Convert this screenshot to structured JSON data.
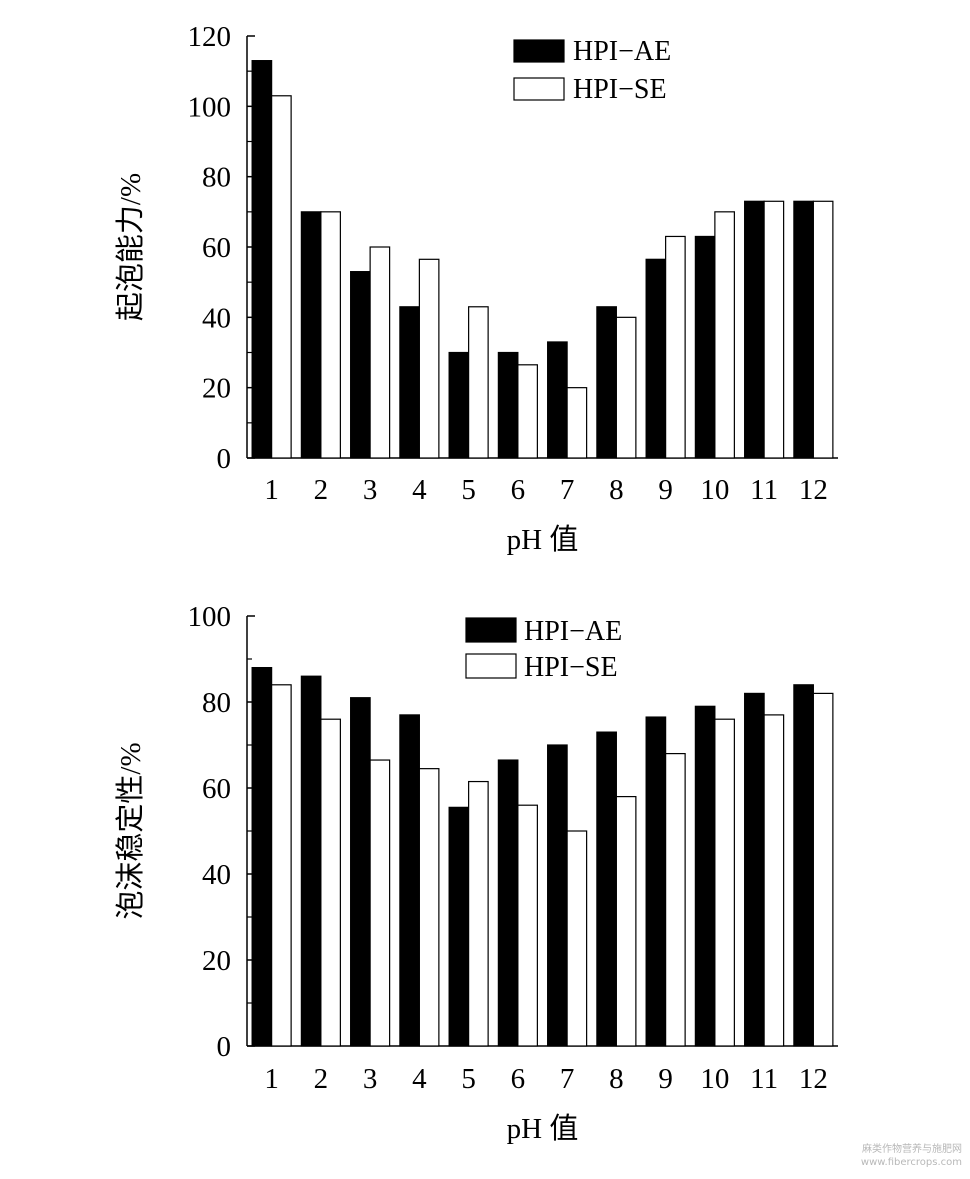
{
  "chart_data": [
    {
      "type": "bar",
      "xlabel": "pH 值",
      "ylabel": "起泡能力/%",
      "ylim": [
        0,
        120
      ],
      "yticks": [
        0,
        20,
        40,
        60,
        80,
        100,
        120
      ],
      "categories": [
        "1",
        "2",
        "3",
        "4",
        "5",
        "6",
        "7",
        "8",
        "9",
        "10",
        "11",
        "12"
      ],
      "series": [
        {
          "name": "HPI−AE",
          "color": "#000000",
          "values": [
            113,
            70,
            53,
            43,
            30,
            30,
            33,
            43,
            56.5,
            63,
            73,
            73
          ]
        },
        {
          "name": "HPI−SE",
          "color": "#ffffff",
          "values": [
            103,
            70,
            60,
            56.5,
            43,
            26.5,
            20,
            40,
            63,
            70,
            73,
            73
          ]
        }
      ],
      "legend": "top-right"
    },
    {
      "type": "bar",
      "xlabel": "pH 值",
      "ylabel": "泡沫稳定性/%",
      "ylim": [
        0,
        100
      ],
      "yticks": [
        0,
        20,
        40,
        60,
        80,
        100
      ],
      "categories": [
        "1",
        "2",
        "3",
        "4",
        "5",
        "6",
        "7",
        "8",
        "9",
        "10",
        "11",
        "12"
      ],
      "series": [
        {
          "name": "HPI−AE",
          "color": "#000000",
          "values": [
            88,
            86,
            81,
            77,
            55.5,
            66.5,
            70,
            73,
            76.5,
            79,
            82,
            84
          ]
        },
        {
          "name": "HPI−SE",
          "color": "#ffffff",
          "values": [
            84,
            76,
            66.5,
            64.5,
            61.5,
            56,
            50,
            58,
            68,
            76,
            77,
            82
          ]
        }
      ],
      "legend": "top-right"
    }
  ],
  "watermark": {
    "line1": "麻类作物营养与施肥网",
    "line2": "www.fibercrops.com"
  }
}
